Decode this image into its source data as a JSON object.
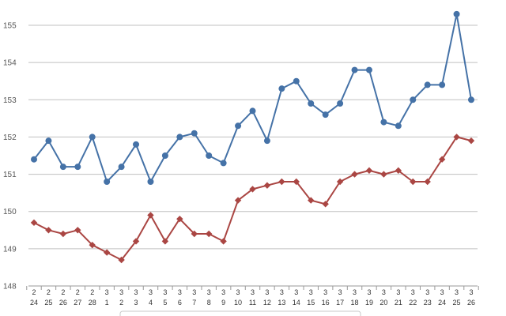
{
  "chart_data": {
    "type": "line",
    "categories": [
      [
        "2",
        "24"
      ],
      [
        "2",
        "25"
      ],
      [
        "2",
        "26"
      ],
      [
        "2",
        "27"
      ],
      [
        "2",
        "28"
      ],
      [
        "3",
        "1"
      ],
      [
        "3",
        "2"
      ],
      [
        "3",
        "3"
      ],
      [
        "3",
        "4"
      ],
      [
        "3",
        "5"
      ],
      [
        "3",
        "6"
      ],
      [
        "3",
        "7"
      ],
      [
        "3",
        "8"
      ],
      [
        "3",
        "9"
      ],
      [
        "3",
        "10"
      ],
      [
        "3",
        "11"
      ],
      [
        "3",
        "12"
      ],
      [
        "3",
        "13"
      ],
      [
        "3",
        "14"
      ],
      [
        "3",
        "15"
      ],
      [
        "3",
        "16"
      ],
      [
        "3",
        "17"
      ],
      [
        "3",
        "18"
      ],
      [
        "3",
        "19"
      ],
      [
        "3",
        "20"
      ],
      [
        "3",
        "21"
      ],
      [
        "3",
        "22"
      ],
      [
        "3",
        "23"
      ],
      [
        "3",
        "24"
      ],
      [
        "3",
        "25"
      ],
      [
        "3",
        "26"
      ]
    ],
    "series": [
      {
        "color": "#4572A7",
        "marker": "circle",
        "values": [
          151.4,
          151.9,
          151.2,
          151.2,
          152.0,
          150.8,
          151.2,
          151.8,
          150.8,
          151.5,
          152.0,
          152.1,
          151.5,
          151.3,
          152.3,
          152.7,
          151.9,
          153.3,
          153.5,
          152.9,
          152.6,
          152.9,
          153.8,
          153.8,
          152.4,
          152.3,
          153.0,
          153.4,
          153.4,
          155.3,
          153.0
        ]
      },
      {
        "color": "#AA4643",
        "marker": "diamond",
        "values": [
          149.7,
          149.5,
          149.4,
          149.5,
          149.1,
          148.9,
          148.7,
          149.2,
          149.9,
          149.2,
          149.8,
          149.4,
          149.4,
          149.2,
          150.3,
          150.6,
          150.7,
          150.8,
          150.8,
          150.3,
          150.2,
          150.8,
          151.0,
          151.1,
          151.0,
          151.1,
          150.8,
          150.8,
          151.4,
          152.0,
          151.9
        ]
      }
    ],
    "ylim": [
      148,
      155
    ],
    "yticks": [
      "148",
      "149",
      "150",
      "151",
      "152",
      "153",
      "154",
      "155"
    ],
    "grid": true,
    "legend": "bottom"
  }
}
